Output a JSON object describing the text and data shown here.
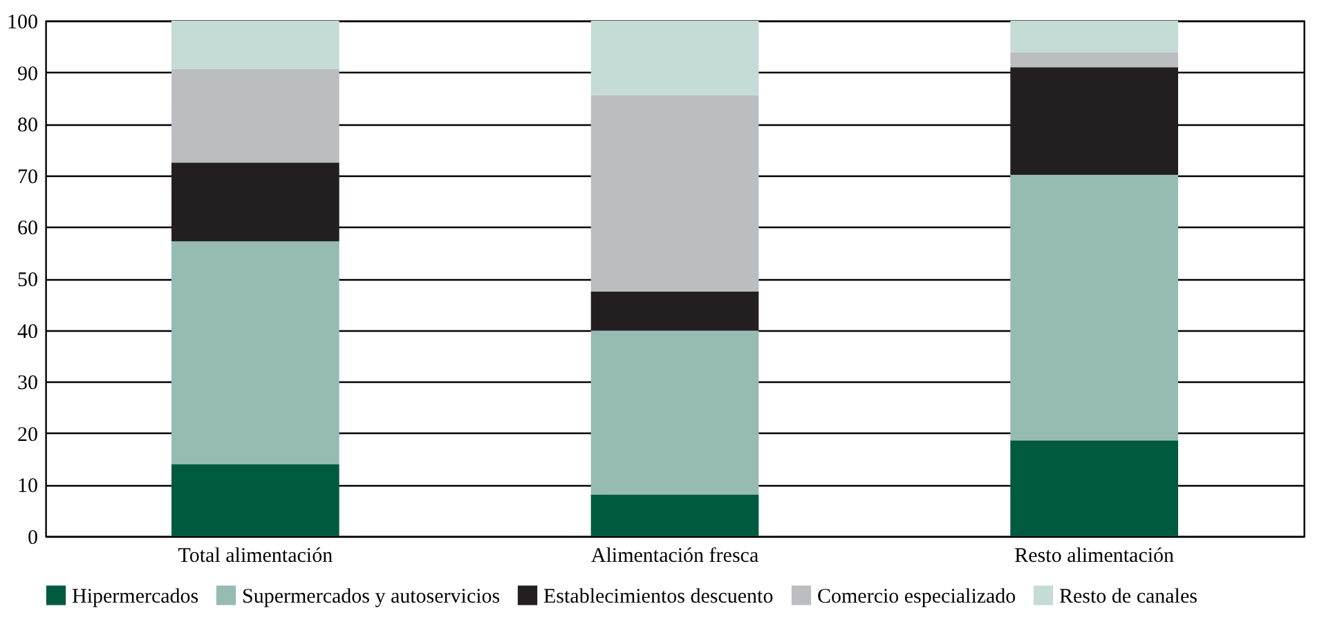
{
  "chart_data": {
    "type": "bar",
    "stacked": true,
    "categories": [
      "Total alimentación",
      "Alimentación fresca",
      "Resto alimentación"
    ],
    "series": [
      {
        "name": "Hipermercados",
        "color": "#005a40",
        "values": [
          14.0,
          8.1,
          18.6
        ]
      },
      {
        "name": "Supermercados y autoservicios",
        "color": "#96bbb2",
        "values": [
          43.2,
          31.8,
          51.5
        ]
      },
      {
        "name": "Establecimientos descuento",
        "color": "#231f20",
        "values": [
          15.3,
          7.6,
          20.9
        ]
      },
      {
        "name": "Comercio especializado",
        "color": "#bcbdc0",
        "values": [
          18.2,
          38.1,
          2.9
        ]
      },
      {
        "name": "Resto de canales",
        "color": "#c5dbd5",
        "values": [
          9.3,
          14.4,
          6.1
        ]
      }
    ],
    "ylim": [
      0,
      100
    ],
    "yticks": [
      0,
      10,
      20,
      30,
      40,
      50,
      60,
      70,
      80,
      90,
      100
    ],
    "grid": "y",
    "legend": "bottom"
  }
}
